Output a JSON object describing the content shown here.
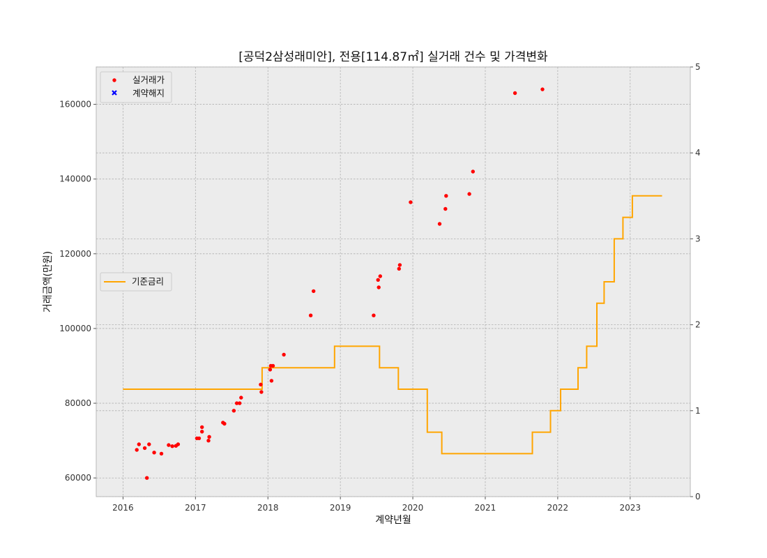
{
  "chart_data": {
    "type": "scatter",
    "title": "[공덕2삼성래미안], 전용[114.87㎡] 실거래 건수 및 가격변화",
    "xlabel": "계약년월",
    "ylabel": "거래금액(만원)",
    "xlim": [
      2015.63,
      2023.83
    ],
    "ylim": [
      55000,
      170000
    ],
    "y2lim": [
      0,
      5
    ],
    "x_ticks": [
      "2016",
      "2017",
      "2018",
      "2019",
      "2020",
      "2021",
      "2022",
      "2023"
    ],
    "y_ticks": [
      "60000",
      "80000",
      "100000",
      "120000",
      "140000",
      "160000"
    ],
    "y2_ticks": [
      "0",
      "1",
      "2",
      "3",
      "4",
      "5"
    ],
    "grid": true,
    "legend_left": {
      "placement": "upper-left",
      "items": [
        "실거래가",
        "계약해지"
      ]
    },
    "legend_right": {
      "placement": "center-left",
      "items": [
        "기준금리"
      ]
    },
    "colors": {
      "deal": "#ff0000",
      "cancel": "#0000ff",
      "rate": "#ffa500",
      "plot_bg": "#ececec",
      "grid": "#b0b0b0"
    },
    "series": [
      {
        "name": "실거래가",
        "marker": "dot",
        "points": [
          [
            2016.19,
            67500
          ],
          [
            2016.22,
            69000
          ],
          [
            2016.3,
            68000
          ],
          [
            2016.33,
            60000
          ],
          [
            2016.36,
            69000
          ],
          [
            2016.43,
            66800
          ],
          [
            2016.53,
            66500
          ],
          [
            2016.63,
            68800
          ],
          [
            2016.68,
            68500
          ],
          [
            2016.73,
            68600
          ],
          [
            2016.76,
            69000
          ],
          [
            2017.02,
            70600
          ],
          [
            2017.05,
            70600
          ],
          [
            2017.09,
            72400
          ],
          [
            2017.09,
            73600
          ],
          [
            2017.18,
            70000
          ],
          [
            2017.19,
            71000
          ],
          [
            2017.38,
            74800
          ],
          [
            2017.4,
            74500
          ],
          [
            2017.53,
            78000
          ],
          [
            2017.57,
            80000
          ],
          [
            2017.61,
            80000
          ],
          [
            2017.63,
            81500
          ],
          [
            2017.9,
            85000
          ],
          [
            2017.91,
            83000
          ],
          [
            2018.03,
            89000
          ],
          [
            2018.04,
            90000
          ],
          [
            2018.05,
            86000
          ],
          [
            2018.07,
            90000
          ],
          [
            2018.22,
            93000
          ],
          [
            2018.59,
            103500
          ],
          [
            2018.63,
            110000
          ],
          [
            2019.46,
            103500
          ],
          [
            2019.52,
            113000
          ],
          [
            2019.53,
            111000
          ],
          [
            2019.55,
            114000
          ],
          [
            2019.81,
            116000
          ],
          [
            2019.82,
            117000
          ],
          [
            2019.97,
            133800
          ],
          [
            2020.37,
            128000
          ],
          [
            2020.45,
            132000
          ],
          [
            2020.46,
            135500
          ],
          [
            2020.78,
            136000
          ],
          [
            2020.83,
            142000
          ],
          [
            2021.41,
            163000
          ],
          [
            2021.79,
            164000
          ]
        ]
      },
      {
        "name": "계약해지",
        "marker": "x",
        "points": []
      },
      {
        "name": "기준금리",
        "axis": "right",
        "step": true,
        "points": [
          [
            2016.0,
            1.25
          ],
          [
            2017.92,
            1.25
          ],
          [
            2017.92,
            1.5
          ],
          [
            2018.92,
            1.5
          ],
          [
            2018.92,
            1.75
          ],
          [
            2019.54,
            1.75
          ],
          [
            2019.54,
            1.5
          ],
          [
            2019.8,
            1.5
          ],
          [
            2019.8,
            1.25
          ],
          [
            2020.2,
            1.25
          ],
          [
            2020.2,
            0.75
          ],
          [
            2020.4,
            0.75
          ],
          [
            2020.4,
            0.5
          ],
          [
            2021.65,
            0.5
          ],
          [
            2021.65,
            0.75
          ],
          [
            2021.9,
            0.75
          ],
          [
            2021.9,
            1.0
          ],
          [
            2022.04,
            1.0
          ],
          [
            2022.04,
            1.25
          ],
          [
            2022.28,
            1.25
          ],
          [
            2022.28,
            1.5
          ],
          [
            2022.4,
            1.5
          ],
          [
            2022.4,
            1.75
          ],
          [
            2022.54,
            1.75
          ],
          [
            2022.54,
            2.25
          ],
          [
            2022.64,
            2.25
          ],
          [
            2022.64,
            2.5
          ],
          [
            2022.78,
            2.5
          ],
          [
            2022.78,
            3.0
          ],
          [
            2022.9,
            3.0
          ],
          [
            2022.9,
            3.25
          ],
          [
            2023.03,
            3.25
          ],
          [
            2023.03,
            3.5
          ],
          [
            2023.44,
            3.5
          ]
        ]
      }
    ]
  }
}
